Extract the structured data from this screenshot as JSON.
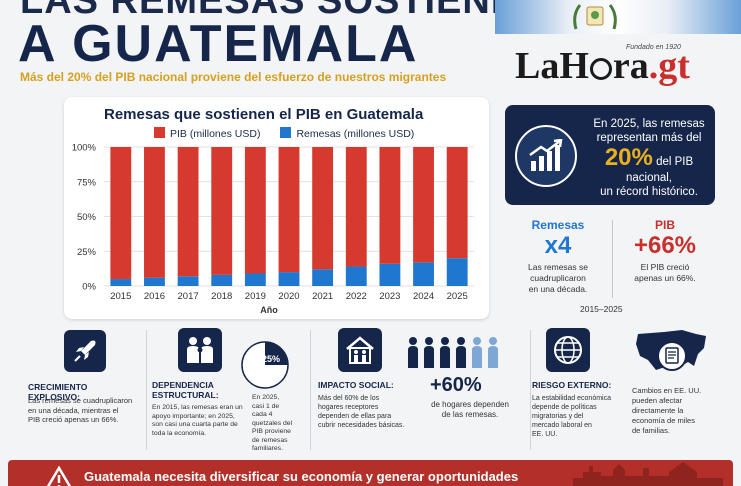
{
  "header": {
    "title_top": "LAS REMESAS SOSTIENEN",
    "title_main": "A GUATEMALA",
    "subtitle": "Más del 20% del PIB nacional proviene del esfuerzo de nuestros migrantes"
  },
  "logo": {
    "part1": "La",
    "part2": "H",
    "part3": "ra",
    "part4": ".gt",
    "tagline": "Fundado en 1920"
  },
  "colors": {
    "navy": "#15264a",
    "red_bar": "#d63a2f",
    "blue_bar": "#1f77d0",
    "gold": "#e9b11f",
    "footer_red": "#b3302a"
  },
  "chart_data": {
    "type": "bar",
    "title": "Remesas que sostienen el PIB en Guatemala",
    "xlabel": "Año",
    "ylabel": "",
    "ylim": [
      0,
      100
    ],
    "yticks": [
      "0%",
      "25%",
      "50%",
      "75%",
      "100%"
    ],
    "legend_placement": "top",
    "categories": [
      "2015",
      "2016",
      "2017",
      "2018",
      "2019",
      "2020",
      "2021",
      "2022",
      "2023",
      "2024",
      "2025"
    ],
    "series": [
      {
        "name": "PIB (millones USD)",
        "values": [
          95,
          94,
          93,
          92,
          91,
          90,
          88,
          86,
          84,
          83,
          80
        ]
      },
      {
        "name": "Remesas (millones USD)",
        "values": [
          5,
          6,
          7,
          8,
          9,
          10,
          12,
          14,
          16,
          17,
          20
        ]
      }
    ]
  },
  "highlight": {
    "line1": "En 2025, las remesas",
    "line2": "representan más del",
    "big": "20%",
    "big_suffix": "del PIB",
    "line3": "nacional,",
    "line4": "un récord histórico."
  },
  "stats": {
    "remesas": {
      "label": "Remesas",
      "value": "x4",
      "desc1": "Las remesas se",
      "desc2": "cuadruplicaron",
      "desc3": "en una década."
    },
    "pib": {
      "label": "PIB",
      "value": "+66%",
      "desc1": "El PIB creció",
      "desc2": "apenas un 66%."
    },
    "range": "2015–2025"
  },
  "sections": {
    "crecimiento": {
      "icon": "rocket-icon",
      "title": "CRECIMIENTO EXPLOSIVO:",
      "text1": "Las remesas se cuadruplicaron",
      "text2": "en una década, mientras el",
      "text3": "PIB creció apenas un 66%."
    },
    "dependencia": {
      "icon": "family-icon",
      "title1": "DEPENDENCIA",
      "title2": "ESTRUCTURAL:",
      "text1": "En 2015, las remesas eran un",
      "text2": "apoyo importante; en 2025,",
      "text3": "son casi una cuarta parte de",
      "text4": "toda la economía.",
      "pie_label": "25%",
      "pie_value": 0.25,
      "side1": "En 2025,",
      "side2": "casi 1 de",
      "side3": "cada 4",
      "side4": "quetzales del",
      "side5": "PIB proviene",
      "side6": "de remesas",
      "side7": "familiares."
    },
    "impacto": {
      "icon": "house-family-icon",
      "title": "IMPACTO SOCIAL:",
      "text1": "Más del 60% de los",
      "text2": "hogares receptores",
      "text3": "dependen de ellas para",
      "text4": "cubrir necesidades básicas.",
      "big": "+60%",
      "desc1": "de hogares dependen",
      "desc2": "de las remesas."
    },
    "riesgo": {
      "icon": "globe-icon",
      "title": "RIESGO EXTERNO:",
      "text1": "La estabilidad económica",
      "text2": "depende de políticas",
      "text3": "migratorias y del",
      "text4": "mercado laboral en",
      "text5": "EE. UU."
    },
    "cambios": {
      "icon": "usa-map-document-icon",
      "text1": "Cambios en EE. UU.",
      "text2": "pueden afectar",
      "text3": "directamente la",
      "text4": "economía de miles",
      "text5": "de familias."
    }
  },
  "footer": {
    "text": "Guatemala necesita diversificar su economía y generar oportunidades"
  }
}
